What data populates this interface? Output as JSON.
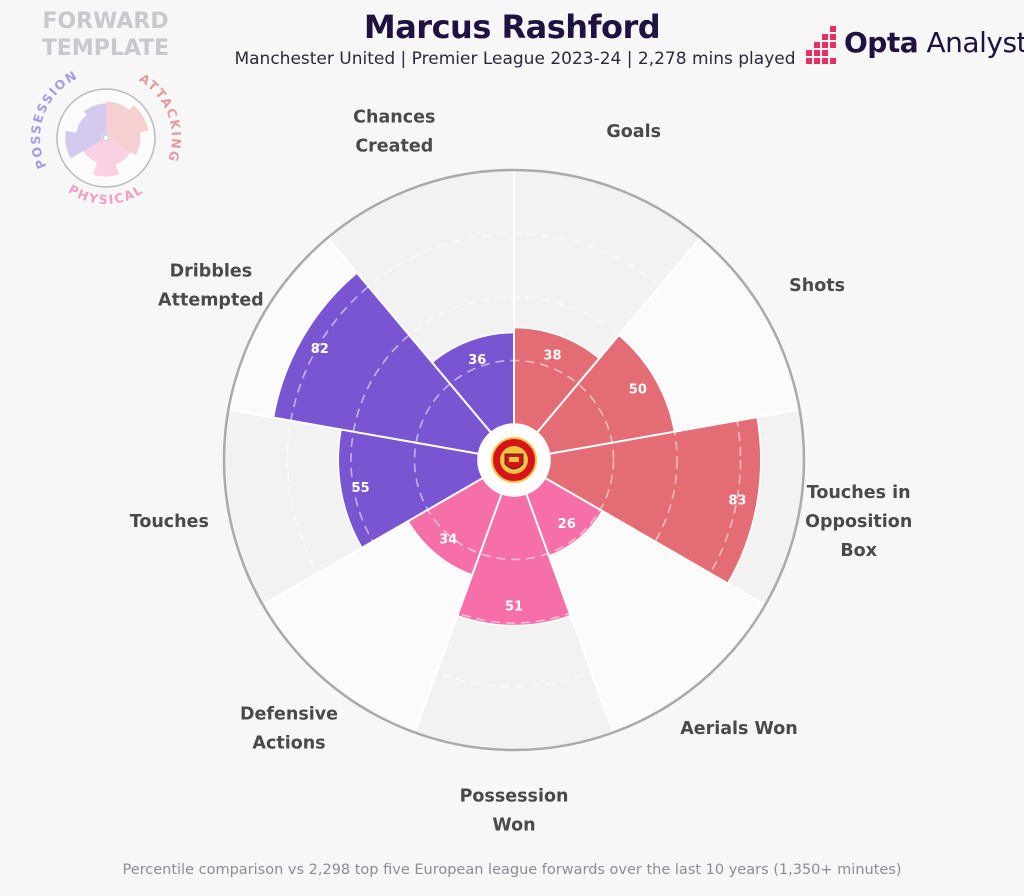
{
  "header": {
    "title": "Marcus Rashford",
    "subtitle": "Manchester United | Premier League 2023-24 | 2,278 mins played",
    "template_line1": "FORWARD",
    "template_line2": "TEMPLATE",
    "brand_bold": "Opta",
    "brand_light": "Analyst"
  },
  "legend": {
    "groups": [
      "POSSESSION",
      "ATTACKING",
      "PHYSICAL"
    ]
  },
  "badge": {
    "icon": "manchester-united-crest-icon",
    "text": "MANCHESTER UNITED"
  },
  "colors": {
    "attacking": "#e46c74",
    "physical": "#f76fa8",
    "possession": "#7a55d2",
    "background": "#f8f7f8",
    "ring": "#aaaaaa"
  },
  "chart_data": {
    "type": "radial-bar",
    "scale": [
      0,
      100
    ],
    "categories": [
      {
        "label": [
          "Goals"
        ],
        "value": 38,
        "group": "attacking"
      },
      {
        "label": [
          "Shots"
        ],
        "value": 50,
        "group": "attacking"
      },
      {
        "label": [
          "Touches in",
          "Opposition",
          "Box"
        ],
        "value": 83,
        "group": "attacking"
      },
      {
        "label": [
          "Aerials Won"
        ],
        "value": 26,
        "group": "physical"
      },
      {
        "label": [
          "Possession",
          "Won"
        ],
        "value": 51,
        "group": "physical"
      },
      {
        "label": [
          "Defensive",
          "Actions"
        ],
        "value": 34,
        "group": "physical"
      },
      {
        "label": [
          "Touches"
        ],
        "value": 55,
        "group": "possession"
      },
      {
        "label": [
          "Dribbles",
          "Attempted"
        ],
        "value": 82,
        "group": "possession"
      },
      {
        "label": [
          "Chances",
          "Created"
        ],
        "value": 36,
        "group": "possession"
      }
    ],
    "footnote": "Percentile comparison vs 2,298 top five European league forwards over the last 10 years (1,350+ minutes)"
  }
}
